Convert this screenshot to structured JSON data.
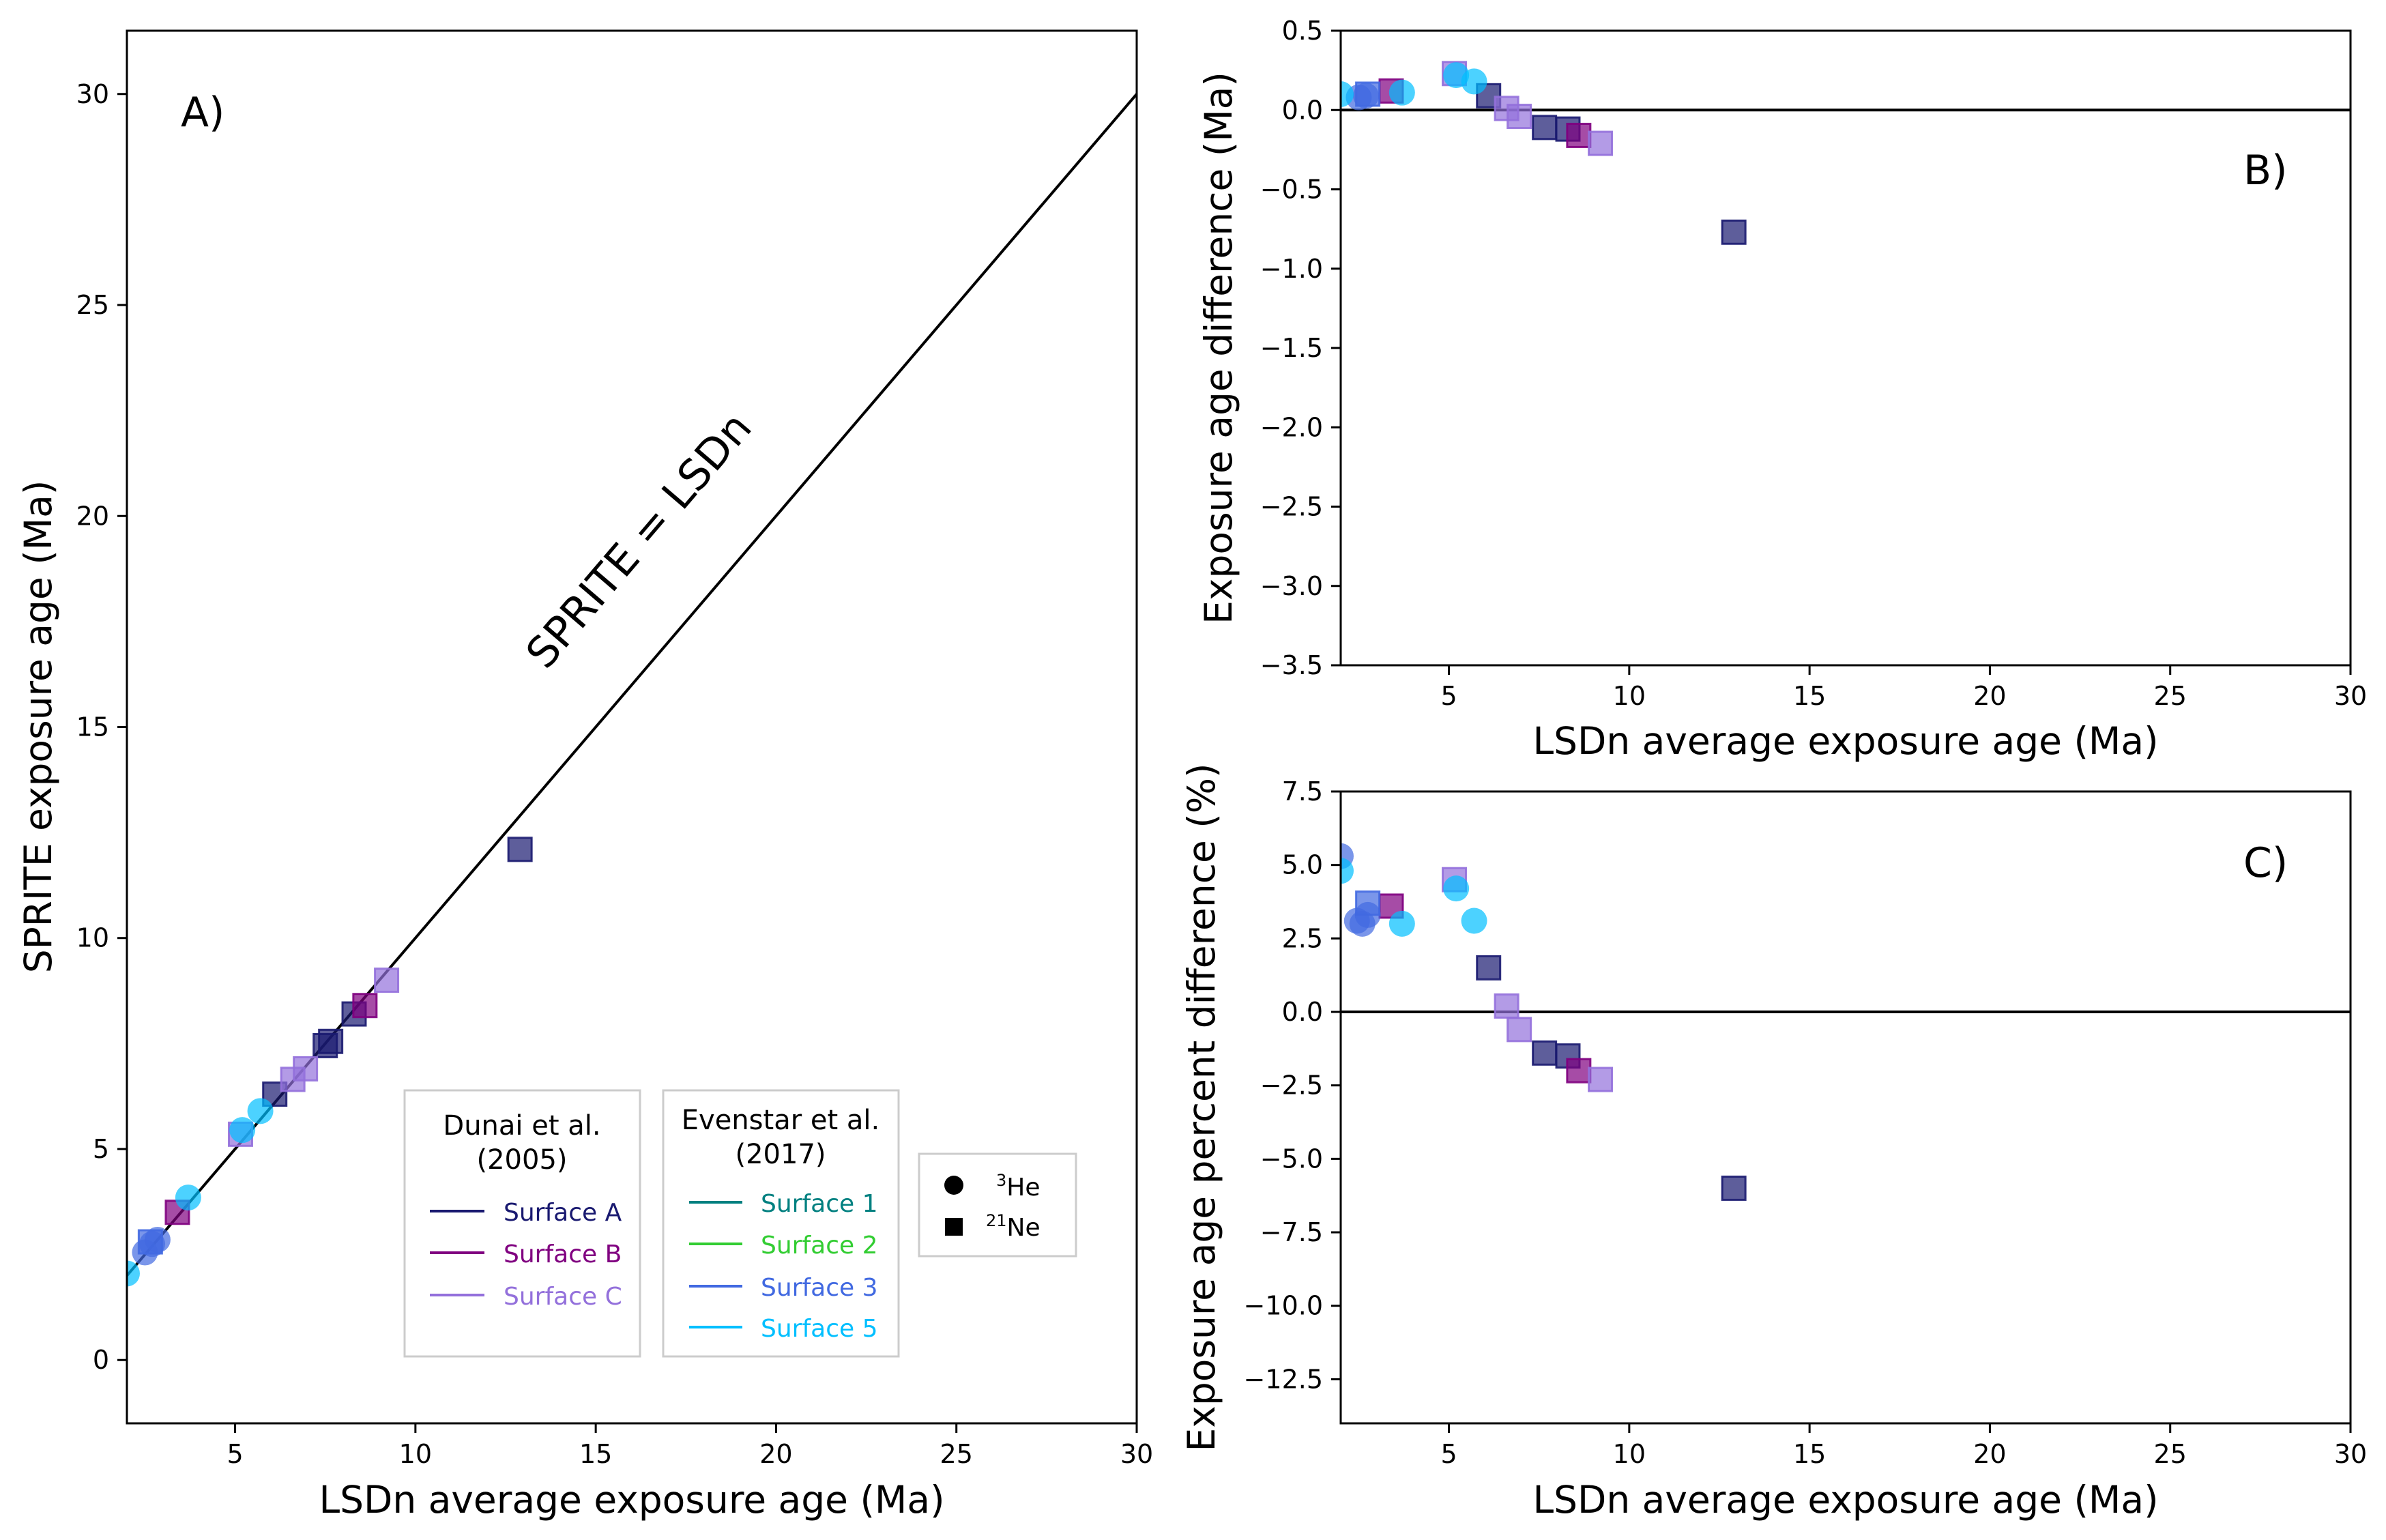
{
  "colors": {
    "surface_a": "#191970",
    "surface_b": "#800080",
    "surface_c": "#9370DB",
    "surface_1": "#008080",
    "surface_2": "#32CD32",
    "surface_3": "#4169E1",
    "surface_5": "#00BFFF"
  },
  "chart_data": [
    {
      "type": "scatter",
      "panel": "A",
      "panel_label": "A)",
      "xlabel": "LSDn average exposure age (Ma)",
      "ylabel": "SPRITE exposure age (Ma)",
      "xlim": [
        2,
        30
      ],
      "ylim": [
        -1.5,
        31.5
      ],
      "xticks": [
        5,
        10,
        15,
        20,
        25,
        30
      ],
      "yticks": [
        0,
        5,
        10,
        15,
        20,
        25,
        30
      ],
      "reference_line": {
        "label": "SPRITE = LSDn",
        "from": [
          2,
          2
        ],
        "to": [
          30,
          30
        ]
      },
      "series": [
        {
          "name": "Surface A",
          "points": [
            {
              "x": 6.1,
              "y": 6.3,
              "marker": "square"
            },
            {
              "x": 7.5,
              "y": 7.45,
              "marker": "square"
            },
            {
              "x": 7.65,
              "y": 7.55,
              "marker": "square"
            },
            {
              "x": 8.3,
              "y": 8.2,
              "marker": "square"
            },
            {
              "x": 12.9,
              "y": 12.1,
              "marker": "square"
            }
          ]
        },
        {
          "name": "Surface B",
          "points": [
            {
              "x": 3.4,
              "y": 3.5,
              "marker": "square"
            },
            {
              "x": 8.6,
              "y": 8.4,
              "marker": "square"
            }
          ]
        },
        {
          "name": "Surface C",
          "points": [
            {
              "x": 5.15,
              "y": 5.35,
              "marker": "square"
            },
            {
              "x": 6.6,
              "y": 6.65,
              "marker": "square"
            },
            {
              "x": 6.95,
              "y": 6.9,
              "marker": "square"
            },
            {
              "x": 9.2,
              "y": 9.0,
              "marker": "square"
            }
          ]
        },
        {
          "name": "Surface 3",
          "points": [
            {
              "x": 2.5,
              "y": 2.55,
              "marker": "circle"
            },
            {
              "x": 2.7,
              "y": 2.75,
              "marker": "circle"
            },
            {
              "x": 2.85,
              "y": 2.85,
              "marker": "circle"
            },
            {
              "x": 2.65,
              "y": 2.8,
              "marker": "square"
            }
          ]
        },
        {
          "name": "Surface 5",
          "points": [
            {
              "x": 2.0,
              "y": 2.05,
              "marker": "circle"
            },
            {
              "x": 3.7,
              "y": 3.85,
              "marker": "circle"
            },
            {
              "x": 5.2,
              "y": 5.45,
              "marker": "circle"
            },
            {
              "x": 5.7,
              "y": 5.9,
              "marker": "circle"
            }
          ]
        }
      ]
    },
    {
      "type": "scatter",
      "panel": "B",
      "panel_label": "B)",
      "xlabel": "LSDn average exposure age (Ma)",
      "ylabel": "Exposure age difference (Ma)",
      "xlim": [
        2,
        30
      ],
      "ylim": [
        -3.5,
        0.5
      ],
      "xticks": [
        5,
        10,
        15,
        20,
        25,
        30
      ],
      "yticks": [
        0.5,
        0.0,
        -0.5,
        -1.0,
        -1.5,
        -2.0,
        -2.5,
        -3.0,
        -3.5
      ],
      "reference_line": {
        "y": 0
      },
      "series": [
        {
          "name": "Surface A",
          "points": [
            {
              "x": 6.1,
              "y": 0.09,
              "marker": "square"
            },
            {
              "x": 7.65,
              "y": -0.11,
              "marker": "square"
            },
            {
              "x": 8.3,
              "y": -0.12,
              "marker": "square"
            },
            {
              "x": 12.9,
              "y": -0.77,
              "marker": "square"
            }
          ]
        },
        {
          "name": "Surface B",
          "points": [
            {
              "x": 3.4,
              "y": 0.12,
              "marker": "square"
            },
            {
              "x": 8.6,
              "y": -0.16,
              "marker": "square"
            }
          ]
        },
        {
          "name": "Surface C",
          "points": [
            {
              "x": 5.15,
              "y": 0.23,
              "marker": "square"
            },
            {
              "x": 6.6,
              "y": 0.01,
              "marker": "square"
            },
            {
              "x": 6.95,
              "y": -0.04,
              "marker": "square"
            },
            {
              "x": 9.2,
              "y": -0.21,
              "marker": "square"
            }
          ]
        },
        {
          "name": "Surface 3",
          "points": [
            {
              "x": 2.5,
              "y": 0.08,
              "marker": "circle"
            },
            {
              "x": 2.7,
              "y": 0.09,
              "marker": "circle"
            },
            {
              "x": 2.75,
              "y": 0.1,
              "marker": "square"
            }
          ]
        },
        {
          "name": "Surface 5",
          "points": [
            {
              "x": 2.0,
              "y": 0.1,
              "marker": "circle"
            },
            {
              "x": 3.7,
              "y": 0.11,
              "marker": "circle"
            },
            {
              "x": 5.2,
              "y": 0.22,
              "marker": "circle"
            },
            {
              "x": 5.7,
              "y": 0.18,
              "marker": "circle"
            }
          ]
        }
      ]
    },
    {
      "type": "scatter",
      "panel": "C",
      "panel_label": "C)",
      "xlabel": "LSDn average exposure age (Ma)",
      "ylabel": "Exposure age percent difference (%)",
      "xlim": [
        2,
        30
      ],
      "ylim": [
        -14,
        7.5
      ],
      "xticks": [
        5,
        10,
        15,
        20,
        25,
        30
      ],
      "yticks": [
        7.5,
        5.0,
        2.5,
        0.0,
        -2.5,
        -5.0,
        -7.5,
        -10.0,
        -12.5
      ],
      "reference_line": {
        "y": 0
      },
      "series": [
        {
          "name": "Surface A",
          "points": [
            {
              "x": 6.1,
              "y": 1.5,
              "marker": "square"
            },
            {
              "x": 7.65,
              "y": -1.4,
              "marker": "square"
            },
            {
              "x": 8.3,
              "y": -1.5,
              "marker": "square"
            },
            {
              "x": 12.9,
              "y": -6.0,
              "marker": "square"
            }
          ]
        },
        {
          "name": "Surface B",
          "points": [
            {
              "x": 3.4,
              "y": 3.6,
              "marker": "square"
            },
            {
              "x": 8.6,
              "y": -2.0,
              "marker": "square"
            }
          ]
        },
        {
          "name": "Surface C",
          "points": [
            {
              "x": 5.15,
              "y": 4.5,
              "marker": "square"
            },
            {
              "x": 6.6,
              "y": 0.2,
              "marker": "square"
            },
            {
              "x": 6.95,
              "y": -0.6,
              "marker": "square"
            },
            {
              "x": 9.2,
              "y": -2.3,
              "marker": "square"
            }
          ]
        },
        {
          "name": "Surface 3",
          "points": [
            {
              "x": 2.0,
              "y": 5.3,
              "marker": "circle"
            },
            {
              "x": 2.45,
              "y": 3.1,
              "marker": "circle"
            },
            {
              "x": 2.6,
              "y": 3.0,
              "marker": "circle"
            },
            {
              "x": 2.75,
              "y": 3.3,
              "marker": "circle"
            },
            {
              "x": 2.75,
              "y": 3.7,
              "marker": "square"
            }
          ]
        },
        {
          "name": "Surface 5",
          "points": [
            {
              "x": 2.0,
              "y": 4.8,
              "marker": "circle"
            },
            {
              "x": 3.7,
              "y": 3.0,
              "marker": "circle"
            },
            {
              "x": 5.2,
              "y": 4.2,
              "marker": "circle"
            },
            {
              "x": 5.7,
              "y": 3.1,
              "marker": "circle"
            }
          ]
        }
      ]
    }
  ],
  "legend": {
    "dunai": {
      "title_line1": "Dunai et al.",
      "title_line2": "(2005)",
      "entries": [
        {
          "label": "Surface A",
          "color": "#191970"
        },
        {
          "label": "Surface B",
          "color": "#800080"
        },
        {
          "label": "Surface C",
          "color": "#9370DB"
        }
      ]
    },
    "evenstar": {
      "title_line1": "Evenstar et al.",
      "title_line2": "(2017)",
      "entries": [
        {
          "label": "Surface 1",
          "color": "#008080"
        },
        {
          "label": "Surface 2",
          "color": "#32CD32"
        },
        {
          "label": "Surface 3",
          "color": "#4169E1"
        },
        {
          "label": "Surface 5",
          "color": "#00BFFF"
        }
      ]
    },
    "markers": {
      "he3_sup": "3",
      "he3_elem": "He",
      "ne21_sup": "21",
      "ne21_elem": "Ne"
    }
  }
}
